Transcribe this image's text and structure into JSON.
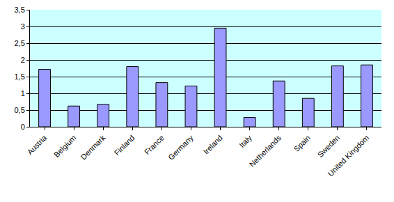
{
  "chart_data": {
    "type": "bar",
    "categories": [
      "Austria",
      "Belgium",
      "Denmark",
      "Finland",
      "France",
      "Germany",
      "Ireland",
      "Italy",
      "Netherlands",
      "Spain",
      "Sweden",
      "United Kingdom"
    ],
    "values": [
      1.72,
      0.62,
      0.67,
      1.8,
      1.32,
      1.22,
      2.95,
      0.28,
      1.37,
      0.85,
      1.82,
      1.85
    ],
    "color": "#9999ff",
    "ylim": [
      0,
      3.5
    ],
    "yticks": [
      0,
      {
        "value": 0.5,
        "label": "0,5"
      },
      1,
      {
        "value": 1.5,
        "label": "1,5"
      },
      2,
      {
        "value": 2.5,
        "label": "2,5"
      },
      3,
      {
        "value": 3.5,
        "label": "3,5"
      }
    ],
    "grid": true
  }
}
